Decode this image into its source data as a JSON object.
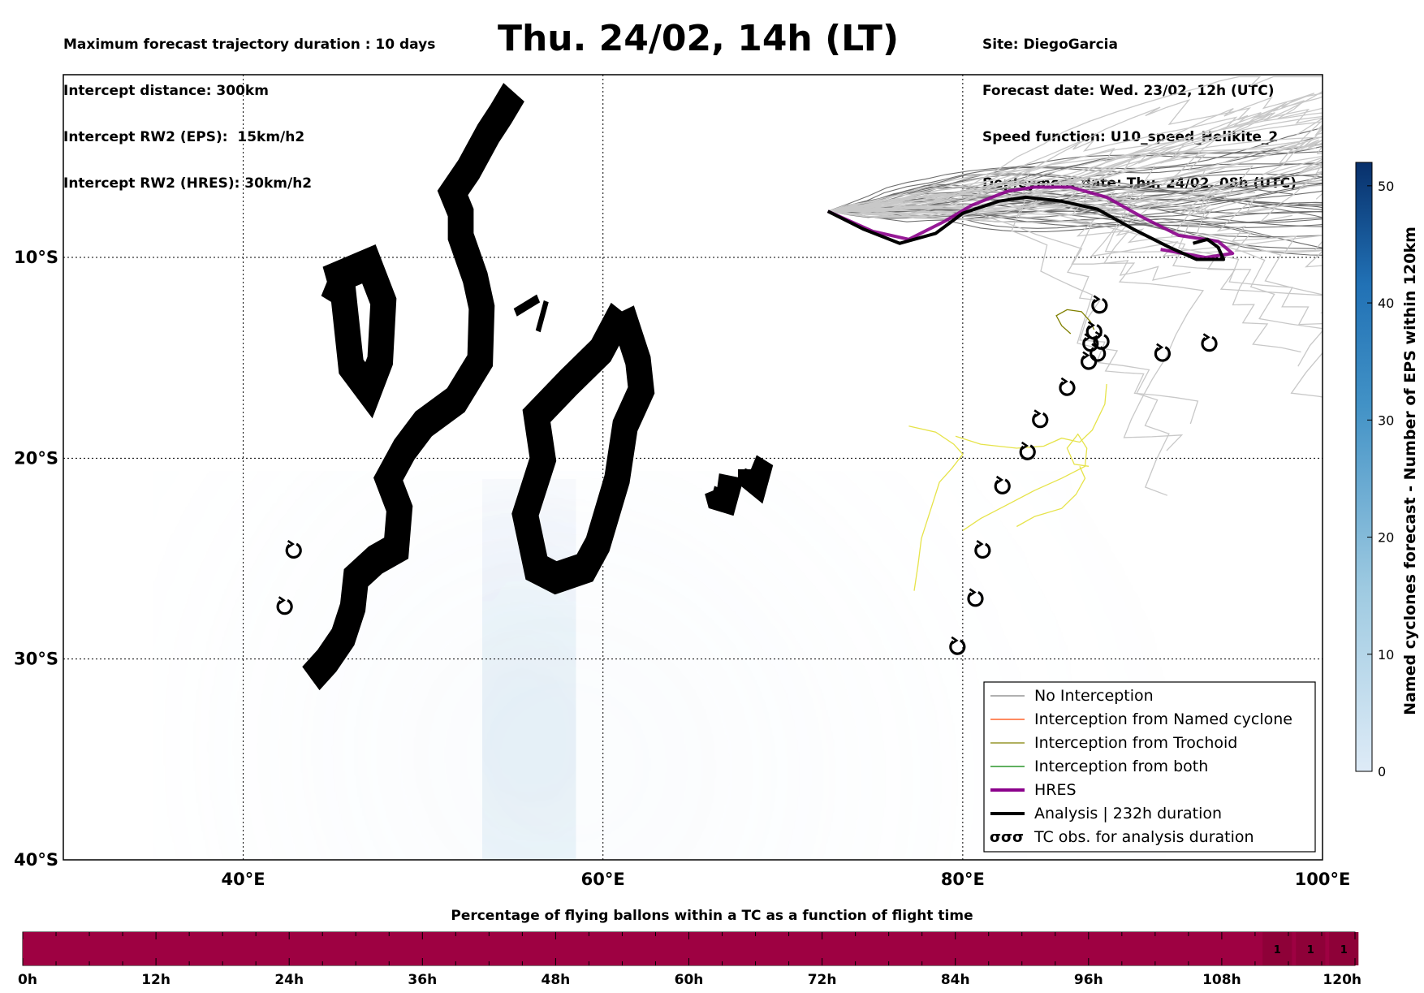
{
  "header": {
    "title": "Thu. 24/02, 14h (LT)",
    "left_lines": [
      "Maximum forecast trajectory duration : 10 days",
      "Intercept distance: 300km",
      "Intercept RW2 (EPS):  15km/h2",
      "Intercept RW2 (HRES): 30km/h2"
    ],
    "right_lines": [
      "Site: DiegoGarcia",
      "Forecast date: Wed. 23/02, 12h (UTC)",
      "Speed function: U10_speed_Helikite_2",
      "Deployment date: Thu. 24/02, 08h (UTC)"
    ]
  },
  "map": {
    "lon_range": [
      30,
      100
    ],
    "lat_range": [
      -40,
      -0.9
    ],
    "x_ticks": [
      {
        "lon": 40,
        "label": "40°E"
      },
      {
        "lon": 60,
        "label": "60°E"
      },
      {
        "lon": 80,
        "label": "80°E"
      },
      {
        "lon": 100,
        "label": "100°E"
      }
    ],
    "y_ticks": [
      {
        "lat": -10,
        "label": "10°S"
      },
      {
        "lat": -20,
        "label": "20°S"
      },
      {
        "lat": -30,
        "label": "30°S"
      },
      {
        "lat": -40,
        "label": "40°S"
      }
    ]
  },
  "chart_data": {
    "type": "map",
    "legend": {
      "position": "lower-right",
      "items": [
        {
          "label": "No Interception",
          "color": "#808080",
          "style": "thin"
        },
        {
          "label": "Interception from Named cyclone",
          "color": "#ff4500",
          "style": "thin"
        },
        {
          "label": "Interception from Trochoid",
          "color": "#808000",
          "style": "thin"
        },
        {
          "label": "Interception from both",
          "color": "#008000",
          "style": "thin"
        },
        {
          "label": "HRES",
          "color": "#8b008b",
          "style": "thick"
        },
        {
          "label": "Analysis | 232h duration",
          "color": "#000000",
          "style": "thick"
        },
        {
          "label": "TC obs. for analysis duration",
          "color": "#000000",
          "style": "symbol",
          "symbol": "σσσ"
        }
      ]
    },
    "hres_track": [
      [
        72.5,
        -7.7
      ],
      [
        75,
        -8.7
      ],
      [
        77,
        -9.1
      ],
      [
        79,
        -8.2
      ],
      [
        80.5,
        -7.4
      ],
      [
        82.5,
        -6.7
      ],
      [
        84,
        -6.5
      ],
      [
        86,
        -6.5
      ],
      [
        88,
        -7
      ],
      [
        90,
        -8
      ],
      [
        92,
        -8.9
      ],
      [
        94.2,
        -9.2
      ],
      [
        95,
        -9.8
      ],
      [
        93.5,
        -10
      ],
      [
        91,
        -9.6
      ]
    ],
    "analysis_track": [
      [
        72.5,
        -7.7
      ],
      [
        74.5,
        -8.6
      ],
      [
        76.5,
        -9.3
      ],
      [
        78.5,
        -8.8
      ],
      [
        80,
        -7.8
      ],
      [
        82,
        -7.2
      ],
      [
        83.5,
        -7
      ],
      [
        85.5,
        -7.2
      ],
      [
        87.5,
        -7.6
      ],
      [
        89.5,
        -8.6
      ],
      [
        91.5,
        -9.5
      ],
      [
        93,
        -10.1
      ],
      [
        94.5,
        -10.1
      ],
      [
        94.2,
        -9.5
      ],
      [
        93.6,
        -9.1
      ],
      [
        92.8,
        -9.3
      ]
    ],
    "tc_obs": [
      [
        87.6,
        -12.4
      ],
      [
        87.3,
        -13.7
      ],
      [
        87.1,
        -14.3
      ],
      [
        87.7,
        -14.2
      ],
      [
        87.5,
        -14.8
      ],
      [
        87,
        -15.2
      ],
      [
        91.1,
        -14.8
      ],
      [
        93.7,
        -14.3
      ],
      [
        85.8,
        -16.5
      ],
      [
        84.3,
        -18.1
      ],
      [
        83.6,
        -19.7
      ],
      [
        82.2,
        -21.4
      ],
      [
        81.1,
        -24.6
      ],
      [
        80.7,
        -27
      ],
      [
        79.7,
        -29.4
      ],
      [
        42.8,
        -24.6
      ],
      [
        42.3,
        -27.4
      ]
    ],
    "density_colorbar": {
      "label": "Named cyclones forecast - Number of EPS within 120km",
      "range": [
        0,
        52
      ],
      "ticks": [
        0,
        10,
        20,
        30,
        40,
        50
      ],
      "colormap": [
        "#deebf7",
        "#9ecae1",
        "#4292c6",
        "#2171b5",
        "#08306b"
      ]
    },
    "density_axis": [
      [
        42.3,
        -27
      ],
      [
        42.1,
        -30
      ],
      [
        43,
        -32.5
      ],
      [
        44.3,
        -34.5
      ],
      [
        45,
        -36.5
      ],
      [
        44.6,
        -38.5
      ],
      [
        44.5,
        -40
      ]
    ],
    "timeline": {
      "title": "Percentage of flying ballons within a TC as a function of flight time",
      "ticks": [
        "0h",
        "12h",
        "24h",
        "36h",
        "48h",
        "60h",
        "72h",
        "84h",
        "96h",
        "108h",
        "120h"
      ],
      "hours": [
        0,
        120
      ],
      "value_percent": 100,
      "bar_color": "#9e0142",
      "cell_labels": [
        {
          "hour": 113,
          "label": "1"
        },
        {
          "hour": 116,
          "label": "1"
        },
        {
          "hour": 119,
          "label": "1"
        }
      ]
    }
  }
}
